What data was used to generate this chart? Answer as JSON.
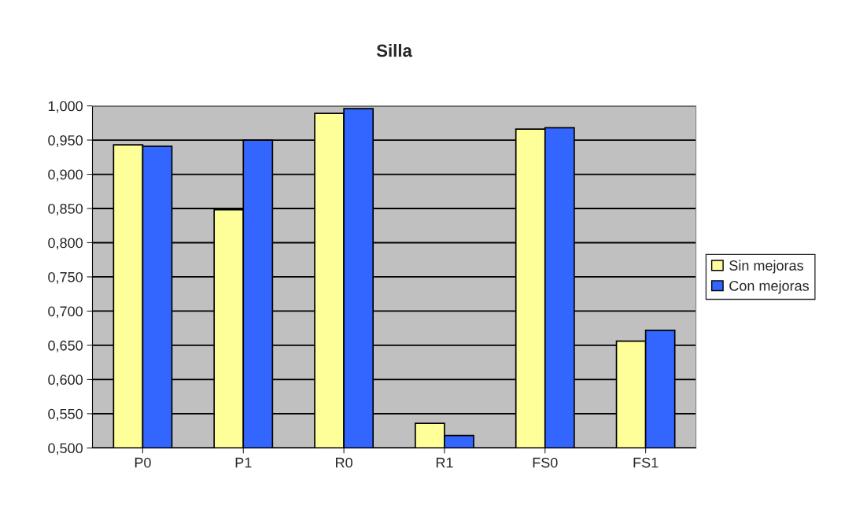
{
  "chart_data": {
    "type": "bar",
    "title": "Silla",
    "categories": [
      "P0",
      "P1",
      "R0",
      "R1",
      "FS0",
      "FS1"
    ],
    "series": [
      {
        "name": "Sin mejoras",
        "color": "#ffff99",
        "values": [
          0.943,
          0.848,
          0.989,
          0.536,
          0.966,
          0.656
        ]
      },
      {
        "name": "Con mejoras",
        "color": "#3366ff",
        "values": [
          0.941,
          0.95,
          0.996,
          0.518,
          0.968,
          0.672
        ]
      }
    ],
    "ylim": [
      0.5,
      1.0
    ],
    "yticks": [
      {
        "value": 0.5,
        "label": "0,500"
      },
      {
        "value": 0.55,
        "label": "0,550"
      },
      {
        "value": 0.6,
        "label": "0,600"
      },
      {
        "value": 0.65,
        "label": "0,650"
      },
      {
        "value": 0.7,
        "label": "0,700"
      },
      {
        "value": 0.75,
        "label": "0,750"
      },
      {
        "value": 0.8,
        "label": "0,800"
      },
      {
        "value": 0.85,
        "label": "0,850"
      },
      {
        "value": 0.9,
        "label": "0,900"
      },
      {
        "value": 0.95,
        "label": "0,950"
      },
      {
        "value": 1.0,
        "label": "1,000"
      }
    ],
    "grid": "y",
    "legend": "right"
  }
}
